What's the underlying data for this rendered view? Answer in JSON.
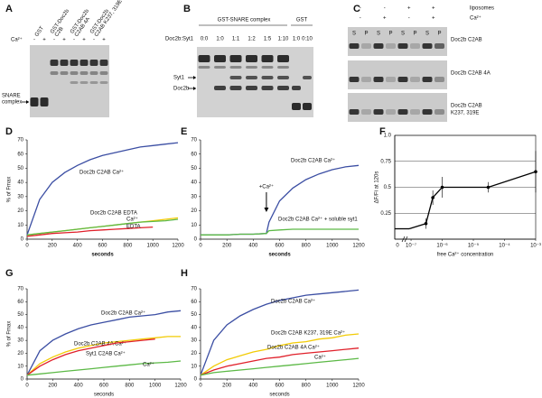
{
  "gels": [
    {
      "panel_label": "A",
      "lane_headers": [
        [
          "GST"
        ],
        [
          "GST-Doc2b",
          "C2B"
        ],
        [
          "GST-Doc2b",
          "C2AB 4A"
        ],
        [
          "GST-Doc2b",
          "C2AB K237, 319E"
        ]
      ],
      "condition_label": "Ca²⁺",
      "lane_signs": [
        "-",
        "+",
        "-",
        "+",
        "-",
        "+",
        "-",
        "+"
      ],
      "band_label": [
        "SNARE",
        "complex"
      ]
    },
    {
      "panel_label": "B",
      "group_labels": [
        "GST-SNARE complex",
        "GST"
      ],
      "ratio_label": "Doc2b:Syt1",
      "ratios": [
        [
          "0:0",
          "1:0",
          "1:1",
          "1:2",
          "1:5",
          "1:10"
        ],
        [
          "1:0",
          "0:10"
        ]
      ],
      "band_labels": [
        "Syt1",
        "Doc2b"
      ]
    },
    {
      "panel_label": "C",
      "condition_labels": [
        "liposomes",
        "Ca²⁺"
      ],
      "condition_signs": [
        [
          "-",
          "-",
          "+",
          "+"
        ],
        [
          "-",
          "+",
          "-",
          "+"
        ]
      ],
      "lane_labels": [
        "S",
        "P",
        "S",
        "P",
        "S",
        "P",
        "S",
        "P"
      ],
      "gel_labels": [
        [
          "Doc2b C2AB"
        ],
        [
          "Doc2b C2AB 4A"
        ],
        [
          "Doc2b C2AB",
          "K237, 319E"
        ]
      ]
    }
  ],
  "chart_data": [
    {
      "type": "line",
      "panel_label": "D",
      "xlabel": "seconds",
      "ylabel": "% of Fmax",
      "xlim": [
        0,
        1200
      ],
      "ylim": [
        0,
        70
      ],
      "xticks": [
        0,
        200,
        400,
        600,
        800,
        1000,
        1200
      ],
      "yticks": [
        0,
        10,
        20,
        30,
        40,
        50,
        60,
        70
      ],
      "x": [
        0,
        100,
        200,
        300,
        400,
        500,
        600,
        700,
        800,
        900,
        1000,
        1100,
        1200
      ],
      "series": [
        {
          "name": "Doc2b C2AB Ca²⁺",
          "color": "#3b4ea3",
          "values": [
            3,
            28,
            40,
            47,
            52,
            56,
            59,
            61,
            63,
            65,
            66,
            67,
            68
          ]
        },
        {
          "name": "Doc2b C2AB EDTA",
          "color": "#f2cb05",
          "values": [
            3,
            4,
            5,
            6,
            7,
            8,
            9,
            10,
            11,
            12,
            13,
            14,
            15
          ]
        },
        {
          "name": "Ca²⁺",
          "color": "#5cb946",
          "values": [
            3,
            4,
            5,
            6,
            7,
            8,
            9,
            10,
            11,
            12,
            12.5,
            13,
            14
          ]
        },
        {
          "name": "EDTA",
          "color": "#e0202a",
          "values": [
            2,
            3,
            4,
            4.5,
            5,
            6,
            6.5,
            7,
            7.5,
            8,
            8.5,
            null,
            null
          ]
        }
      ]
    },
    {
      "type": "line",
      "panel_label": "E",
      "xlabel": "seconds",
      "xlim": [
        0,
        1200
      ],
      "ylim": [
        0,
        70
      ],
      "xticks": [
        0,
        200,
        400,
        600,
        800,
        1000,
        1200
      ],
      "yticks": [
        0,
        10,
        20,
        30,
        40,
        50,
        60,
        70
      ],
      "x": [
        0,
        100,
        200,
        300,
        400,
        500,
        520,
        600,
        700,
        800,
        900,
        1000,
        1100,
        1200
      ],
      "annotation": {
        "text": "+Ca²⁺",
        "x": 500
      },
      "series": [
        {
          "name": "Doc2b C2AB Ca²⁺",
          "color": "#3b4ea3",
          "values": [
            3,
            3,
            3,
            3.5,
            3.5,
            4,
            12,
            27,
            36,
            42,
            46,
            49,
            51,
            52
          ]
        },
        {
          "name": "Doc2b C2AB Ca²⁺ + soluble syt1",
          "color": "#5cb946",
          "values": [
            3,
            3,
            3,
            3.5,
            3.5,
            4,
            6,
            6.5,
            7,
            7,
            7,
            7,
            7,
            7
          ]
        }
      ]
    },
    {
      "type": "line",
      "panel_label": "F",
      "xlabel": "free Ca²⁺ concentration",
      "ylabel": "ΔF/Fi at 120s",
      "xlog": true,
      "grid": true,
      "x_break_label": "0",
      "zero_value": 0.1,
      "xlim": [
        3e-08,
        0.001
      ],
      "ylim": [
        0,
        1
      ],
      "xticks": [
        {
          "value": 1e-07,
          "label": "10⁻⁷"
        },
        {
          "value": 1e-06,
          "label": "10⁻⁶"
        },
        {
          "value": 1e-05,
          "label": "10⁻⁵"
        },
        {
          "value": 0.0001,
          "label": "10⁻⁴"
        },
        {
          "value": 0.001,
          "label": "10⁻³"
        }
      ],
      "yticks": [
        0.25,
        0.5,
        0.75,
        {
          "value": 1,
          "label": "1.0"
        }
      ],
      "x": [
        3e-07,
        5e-07,
        1e-06,
        3e-05,
        0.001
      ],
      "series": [
        {
          "color": "#000000",
          "values": [
            0.15,
            0.4,
            0.5,
            0.5,
            0.65
          ],
          "errors": [
            0.05,
            0.07,
            0.1,
            0.05,
            0.2
          ]
        }
      ]
    },
    {
      "type": "line",
      "panel_label": "G",
      "xlabel": "seconds",
      "ylabel": "% of Fmax",
      "xlim": [
        0,
        1200
      ],
      "ylim": [
        0,
        70
      ],
      "xticks": [
        0,
        200,
        400,
        600,
        800,
        1000,
        1200
      ],
      "yticks": [
        0,
        10,
        20,
        30,
        40,
        50,
        60,
        70
      ],
      "x": [
        0,
        100,
        200,
        300,
        400,
        500,
        600,
        700,
        800,
        900,
        1000,
        1100,
        1200
      ],
      "series": [
        {
          "name": "Doc2b C2AB Ca²⁺",
          "color": "#3b4ea3",
          "values": [
            3,
            22,
            30,
            35,
            39,
            42,
            44,
            46,
            48,
            49,
            50,
            52,
            53
          ]
        },
        {
          "name": "Doc2b C2AB 4A Ca²⁺",
          "color": "#f2cb05",
          "values": [
            3,
            12,
            17,
            21,
            24,
            26,
            28,
            29,
            30,
            31,
            32,
            33,
            33
          ]
        },
        {
          "name": "Syt1 C2AB Ca²⁺",
          "color": "#e0202a",
          "values": [
            3,
            10,
            15,
            19,
            22,
            24,
            26,
            28,
            29,
            30,
            31,
            null,
            null
          ]
        },
        {
          "name": "Ca²⁺",
          "color": "#5cb946",
          "values": [
            3,
            4,
            5,
            6,
            7,
            8,
            9,
            10,
            11,
            12,
            12.5,
            13,
            14
          ]
        }
      ]
    },
    {
      "type": "line",
      "panel_label": "H",
      "xlabel": "seconds",
      "xlim": [
        0,
        1200
      ],
      "ylim": [
        0,
        70
      ],
      "xticks": [
        0,
        200,
        400,
        600,
        800,
        1000,
        1200
      ],
      "yticks": [
        0,
        10,
        20,
        30,
        40,
        50,
        60,
        70
      ],
      "x": [
        0,
        100,
        200,
        300,
        400,
        500,
        600,
        700,
        800,
        900,
        1000,
        1100,
        1200
      ],
      "series": [
        {
          "name": "Doc2b C2AB Ca²⁺",
          "color": "#3b4ea3",
          "values": [
            3,
            30,
            42,
            49,
            54,
            58,
            61,
            63,
            65,
            66,
            67,
            68,
            69
          ]
        },
        {
          "name": "Doc2b C2AB K237, 319E Ca²⁺",
          "color": "#f2cb05",
          "values": [
            3,
            10,
            15,
            18,
            21,
            23,
            26,
            28,
            29,
            31,
            32,
            34,
            35
          ]
        },
        {
          "name": "Doc2b C2AB 4A Ca²⁺",
          "color": "#e0202a",
          "values": [
            3,
            7,
            10,
            12,
            14,
            16,
            17,
            19,
            20,
            21,
            22,
            23,
            24
          ]
        },
        {
          "name": "Ca²⁺",
          "color": "#5cb946",
          "values": [
            3,
            5,
            6,
            7,
            8,
            9,
            10,
            11,
            12,
            13,
            14,
            15,
            16
          ]
        }
      ]
    }
  ]
}
